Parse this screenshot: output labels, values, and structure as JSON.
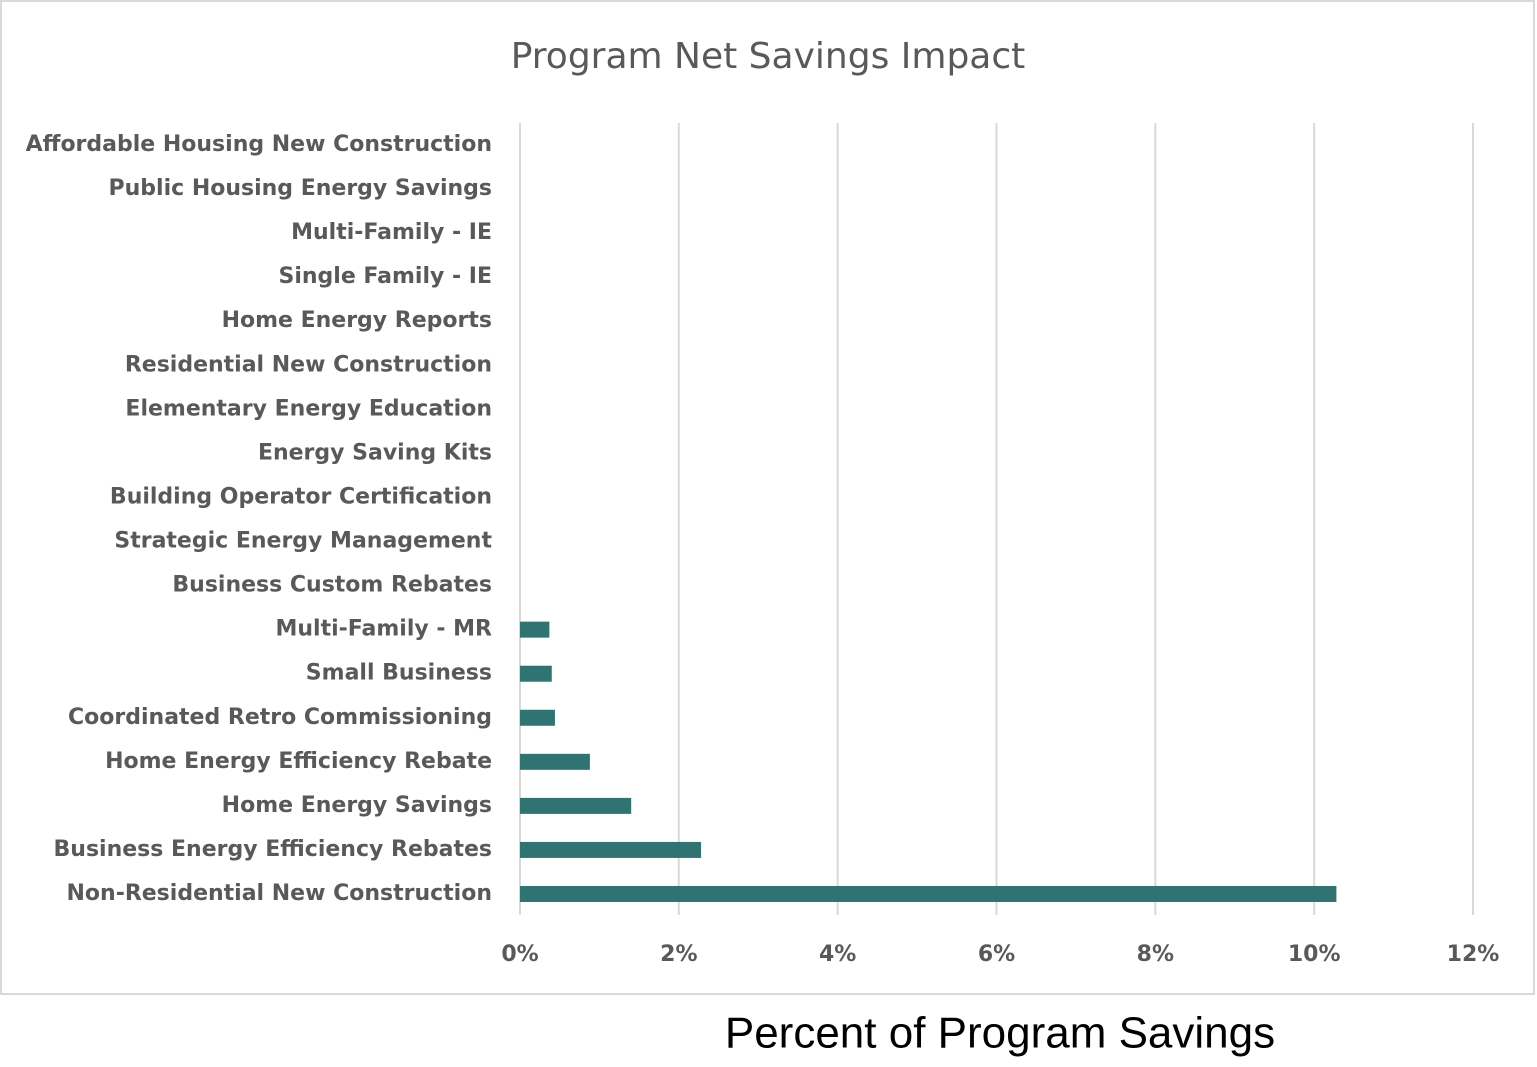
{
  "chart_data": {
    "type": "hbar",
    "title": "Program Net Savings Impact",
    "x_label": "Percent of Program Savings",
    "categories": [
      "Affordable Housing New Construction",
      "Public Housing Energy Savings",
      "Multi-Family - IE",
      "Single Family - IE",
      "Home Energy Reports",
      "Residential New Construction",
      "Elementary Energy Education",
      "Energy Saving Kits",
      "Building Operator Certification",
      "Strategic Energy Management",
      "Business Custom Rebates",
      "Multi-Family - MR",
      "Small Business",
      "Coordinated Retro Commissioning",
      "Home Energy Efficiency Rebate",
      "Home Energy Savings",
      "Business Energy Efficiency Rebates",
      "Non-Residential New Construction"
    ],
    "values": [
      0,
      0,
      0,
      0,
      0,
      0,
      0,
      0,
      0,
      0,
      0,
      0.37,
      0.4,
      0.44,
      0.88,
      1.4,
      2.28,
      10.28
    ],
    "color": "#2f7472",
    "xlim": [
      0,
      12
    ],
    "xticks": [
      {
        "value": 0,
        "label": "0%"
      },
      {
        "value": 2,
        "label": "2%"
      },
      {
        "value": 4,
        "label": "4%"
      },
      {
        "value": 6,
        "label": "6%"
      },
      {
        "value": 8,
        "label": "8%"
      },
      {
        "value": 10,
        "label": "10%"
      },
      {
        "value": 12,
        "label": "12%"
      }
    ],
    "grid": true
  }
}
